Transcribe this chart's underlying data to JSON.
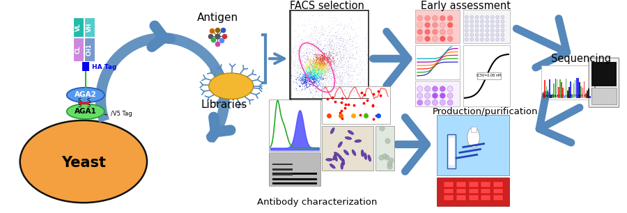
{
  "bg_color": "#ffffff",
  "labels": {
    "antigen": "Antigen",
    "libraries": "Libraries",
    "facs": "FACS selection",
    "early": "Early assessment",
    "sequencing": "Sequencing",
    "antibody_char": "Antibody characterization",
    "production": "Production/purification",
    "yeast": "Yeast"
  },
  "colors": {
    "yeast_fill": "#F4A040",
    "yeast_edge": "#111111",
    "aga2_fill": "#5599EE",
    "aga1_fill": "#66DD66",
    "ha_tag": "#0000EE",
    "vl_fill": "#33CCCC",
    "vh_fill": "#55CCCC",
    "cl_fill": "#CC88DD",
    "ch1_fill": "#7799CC",
    "arrow_color": "#5588BB",
    "s_bond_color": "#EE1111",
    "green_line": "#22BB22",
    "lib_fill": "#F4B830",
    "lib_spike": "#5588BB"
  },
  "figsize": [
    9.0,
    3.06
  ],
  "dpi": 100
}
